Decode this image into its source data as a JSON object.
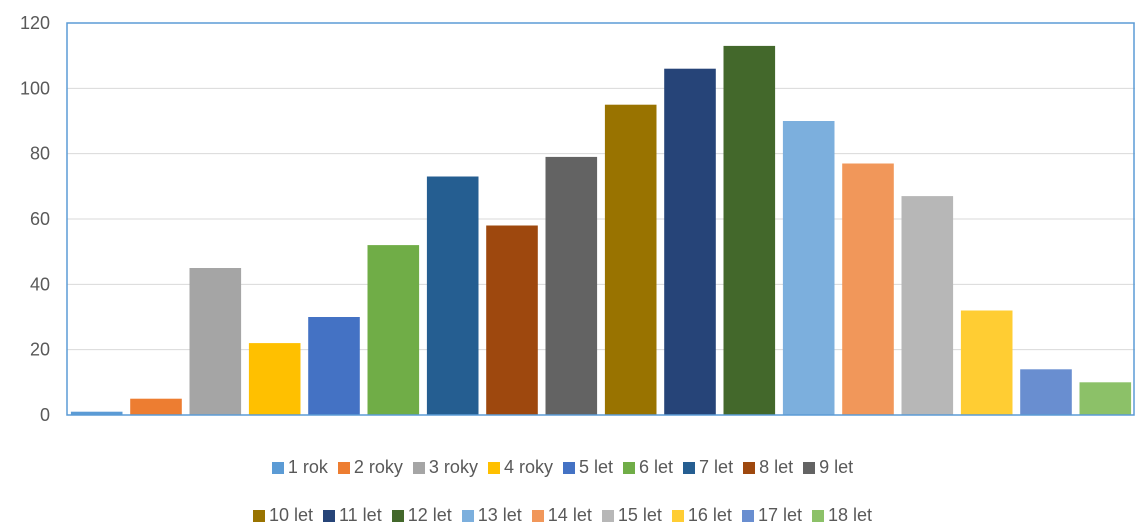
{
  "chart_data": {
    "type": "bar",
    "categories": [
      "1 rok",
      "2 roky",
      "3 roky",
      "4 roky",
      "5 let",
      "6 let",
      "7 let",
      "8 let",
      "9 let",
      "10 let",
      "11 let",
      "12 let",
      "13 let",
      "14 let",
      "15 let",
      "16 let",
      "17 let",
      "18 let"
    ],
    "values": [
      1,
      5,
      45,
      22,
      30,
      52,
      73,
      58,
      79,
      95,
      106,
      113,
      90,
      77,
      67,
      32,
      14,
      10
    ],
    "colors": [
      "#5B9BD5",
      "#ED7D31",
      "#A5A5A5",
      "#FFC000",
      "#4472C4",
      "#70AD47",
      "#255E91",
      "#9E480E",
      "#636363",
      "#997300",
      "#264478",
      "#43682B",
      "#7CAFDD",
      "#F1975A",
      "#B7B7B7",
      "#FFCD33",
      "#698ED0",
      "#8CC168"
    ],
    "title": "",
    "xlabel": "",
    "ylabel": "",
    "ylim": [
      0,
      120
    ],
    "yticks": [
      "0",
      "20",
      "40",
      "60",
      "80",
      "100",
      "120"
    ],
    "grid": true,
    "legend_position": "bottom",
    "gridline_color": "#D9D9D9",
    "axis_color": "#5B9BD5"
  }
}
